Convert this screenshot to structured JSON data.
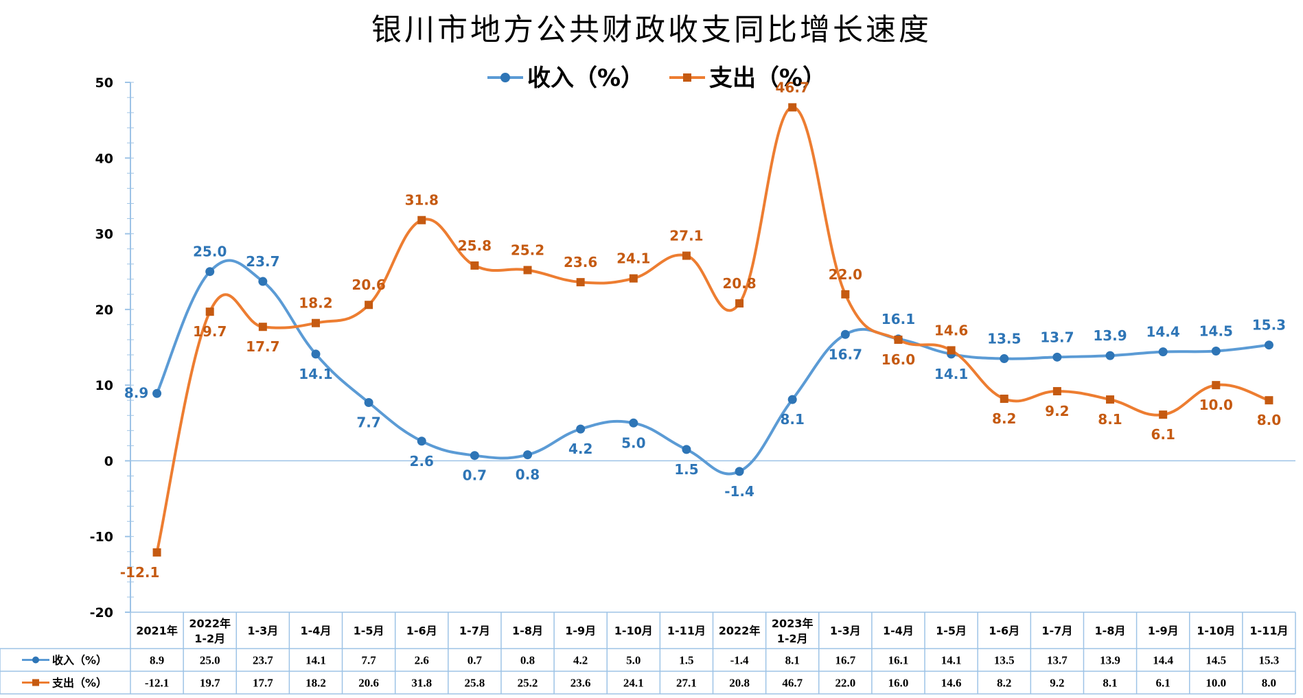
{
  "chart_data": {
    "type": "line",
    "title": "银川市地方公共财政收支同比增长速度",
    "categories": [
      [
        "2021年"
      ],
      [
        "2022年",
        "1-2月"
      ],
      [
        "1-3月"
      ],
      [
        "1-4月"
      ],
      [
        "1-5月"
      ],
      [
        "1-6月"
      ],
      [
        "1-7月"
      ],
      [
        "1-8月"
      ],
      [
        "1-9月"
      ],
      [
        "1-10月"
      ],
      [
        "1-11月"
      ],
      [
        "2022年"
      ],
      [
        "2023年",
        "1-2月"
      ],
      [
        "1-3月"
      ],
      [
        "1-4月"
      ],
      [
        "1-5月"
      ],
      [
        "1-6月"
      ],
      [
        "1-7月"
      ],
      [
        "1-8月"
      ],
      [
        "1-9月"
      ],
      [
        "1-10月"
      ],
      [
        "1-11月"
      ]
    ],
    "series": [
      {
        "name": "收入（%）",
        "color": "#5B9BD5",
        "label_color": "#2E75B6",
        "marker": "circle",
        "values": [
          8.9,
          25.0,
          23.7,
          14.1,
          7.7,
          2.6,
          0.7,
          0.8,
          4.2,
          5.0,
          1.5,
          -1.4,
          8.1,
          16.7,
          16.1,
          14.1,
          13.5,
          13.7,
          13.9,
          14.4,
          14.5,
          15.3
        ]
      },
      {
        "name": "支出（%）",
        "color": "#ED7D31",
        "label_color": "#C55A11",
        "marker": "square",
        "values": [
          -12.1,
          19.7,
          17.7,
          18.2,
          20.6,
          31.8,
          25.8,
          25.2,
          23.6,
          24.1,
          27.1,
          20.8,
          46.7,
          22.0,
          16.0,
          14.6,
          8.2,
          9.2,
          8.1,
          6.1,
          10.0,
          8.0
        ]
      }
    ],
    "ylim": [
      -20,
      50
    ],
    "yticks": [
      -20,
      -10,
      0,
      10,
      20,
      30,
      40,
      50
    ],
    "legend": "top-center",
    "data_table": true
  }
}
